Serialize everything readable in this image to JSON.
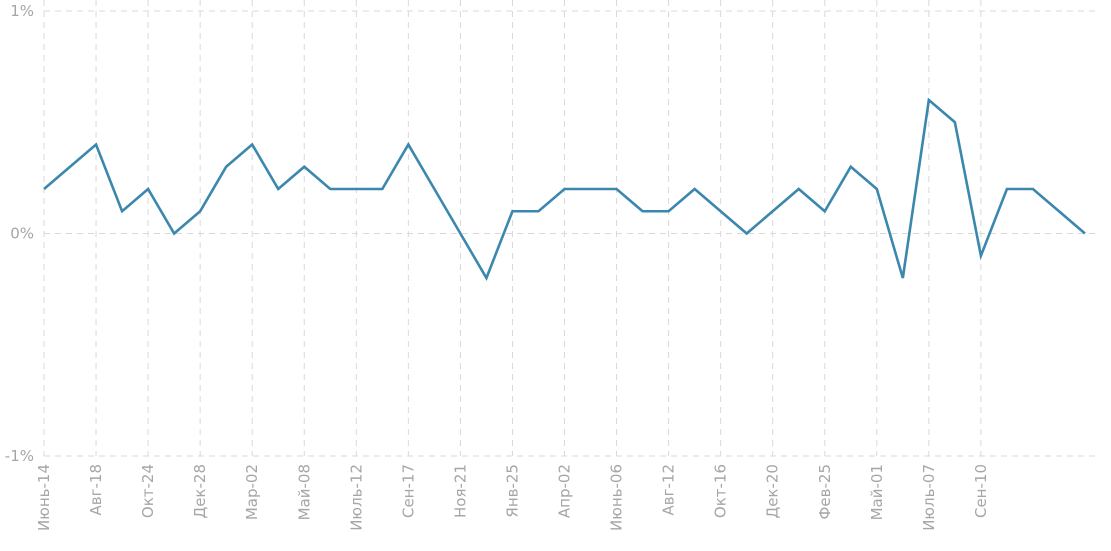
{
  "chart_data": {
    "type": "line",
    "title": "",
    "xlabel": "",
    "ylabel": "",
    "grid": true,
    "ylim": [
      -1,
      1
    ],
    "y_ticks": [
      {
        "value": 1,
        "label": "1%"
      },
      {
        "value": 0,
        "label": "0%"
      },
      {
        "value": -1,
        "label": "-1%"
      }
    ],
    "x_ticks": [
      {
        "index": 0,
        "label": "Июнь-14"
      },
      {
        "index": 2,
        "label": "Авг-18"
      },
      {
        "index": 4,
        "label": "Окт-24"
      },
      {
        "index": 6,
        "label": "Дек-28"
      },
      {
        "index": 8,
        "label": "Мар-02"
      },
      {
        "index": 10,
        "label": "Май-08"
      },
      {
        "index": 12,
        "label": "Июль-12"
      },
      {
        "index": 14,
        "label": "Сен-17"
      },
      {
        "index": 16,
        "label": "Ноя-21"
      },
      {
        "index": 18,
        "label": "Янв-25"
      },
      {
        "index": 20,
        "label": "Апр-02"
      },
      {
        "index": 22,
        "label": "Июнь-06"
      },
      {
        "index": 24,
        "label": "Авг-12"
      },
      {
        "index": 26,
        "label": "Окт-16"
      },
      {
        "index": 28,
        "label": "Дек-20"
      },
      {
        "index": 30,
        "label": "Фев-25"
      },
      {
        "index": 32,
        "label": "Май-01"
      },
      {
        "index": 34,
        "label": "Июль-07"
      },
      {
        "index": 36,
        "label": "Сен-10"
      }
    ],
    "series": [
      {
        "color": "#3b87ad",
        "values": [
          0.2,
          0.3,
          0.4,
          0.1,
          0.2,
          0.0,
          0.1,
          0.3,
          0.4,
          0.2,
          0.3,
          0.2,
          0.2,
          0.2,
          0.4,
          0.2,
          0.0,
          -0.2,
          0.1,
          0.1,
          0.2,
          0.2,
          0.2,
          0.1,
          0.1,
          0.2,
          0.1,
          0.0,
          0.1,
          0.2,
          0.1,
          0.3,
          0.2,
          -0.2,
          0.6,
          0.5,
          -0.1,
          0.2,
          0.2,
          0.1,
          0.0
        ]
      }
    ]
  }
}
